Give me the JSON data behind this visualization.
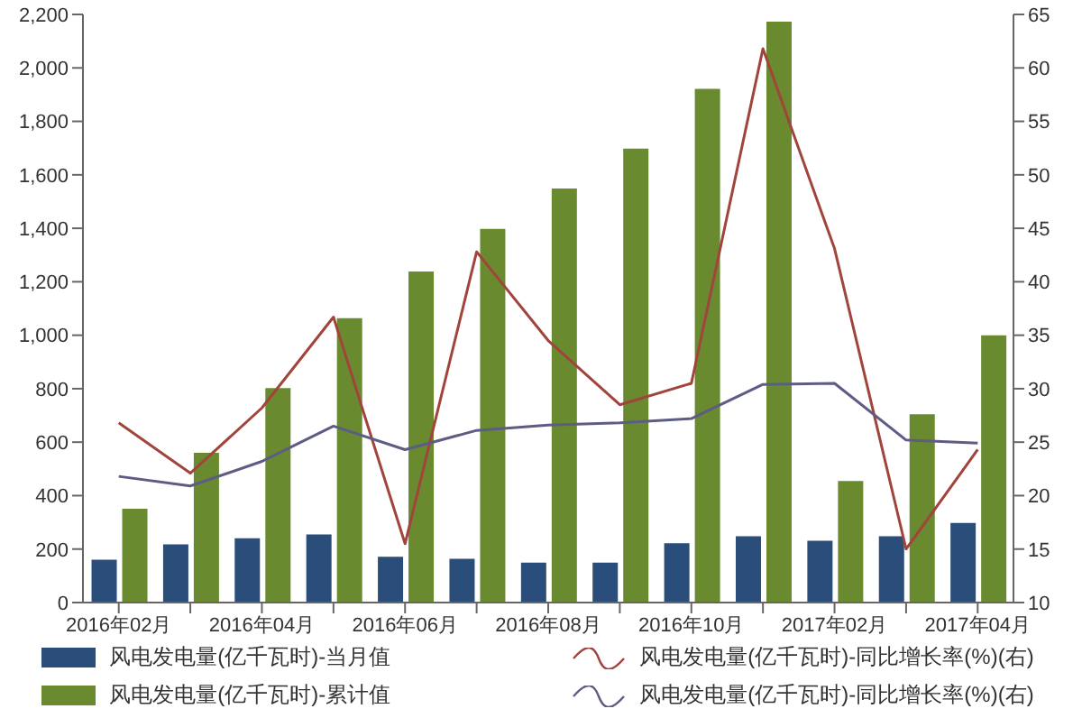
{
  "chart_data": {
    "type": "bar",
    "categories": [
      "2016年02月",
      null,
      "2016年04月",
      null,
      "2016年06月",
      null,
      "2016年08月",
      null,
      "2016年10月",
      null,
      "2017年02月",
      null,
      "2017年04月"
    ],
    "series": [
      {
        "name": "风电发电量(亿千瓦时)-当月值",
        "color": "#2b4d7a",
        "values": [
          160,
          218,
          240,
          255,
          171,
          164,
          149,
          149,
          222,
          248,
          231,
          248,
          298
        ]
      },
      {
        "name": "风电发电量(亿千瓦时)-累计值",
        "color": "#6a8a30",
        "values": [
          351,
          560,
          802,
          1064,
          1238,
          1398,
          1549,
          1698,
          1922,
          2173,
          455,
          704,
          1000
        ]
      },
      {
        "name": "风电发电量(亿千瓦时)-同比增长率(%)(右)",
        "type": "line",
        "axis": "y2",
        "color": "#a0443c",
        "values": [
          26.8,
          22.1,
          28.2,
          36.7,
          15.5,
          42.8,
          34.5,
          28.5,
          30.5,
          61.8,
          43.1,
          15.0,
          24.3
        ]
      },
      {
        "name": "风电发电量(亿千瓦时)-同比增长率(%)(右)",
        "type": "line",
        "axis": "y2",
        "color": "#5c5c84",
        "values": [
          21.8,
          20.9,
          23.2,
          26.5,
          24.3,
          26.1,
          26.6,
          26.8,
          27.2,
          30.4,
          30.5,
          25.2,
          24.9
        ]
      }
    ],
    "ylim": [
      0,
      2200
    ],
    "yticks": [
      0,
      200,
      400,
      600,
      800,
      {
        "value": 1000,
        "label": "1,000"
      },
      {
        "value": 1200,
        "label": "1,200"
      },
      {
        "value": 1400,
        "label": "1,400"
      },
      {
        "value": 1600,
        "label": "1,600"
      },
      {
        "value": 1800,
        "label": "1,800"
      },
      {
        "value": 2000,
        "label": "2,000"
      },
      {
        "value": 2200,
        "label": "2,200"
      }
    ],
    "y2lim": [
      10,
      65
    ],
    "y2ticks": [
      10,
      15,
      20,
      25,
      30,
      35,
      40,
      45,
      50,
      55,
      60,
      65
    ],
    "grid": false,
    "legend": "bottom",
    "marker": "none",
    "line_style": "solid"
  }
}
